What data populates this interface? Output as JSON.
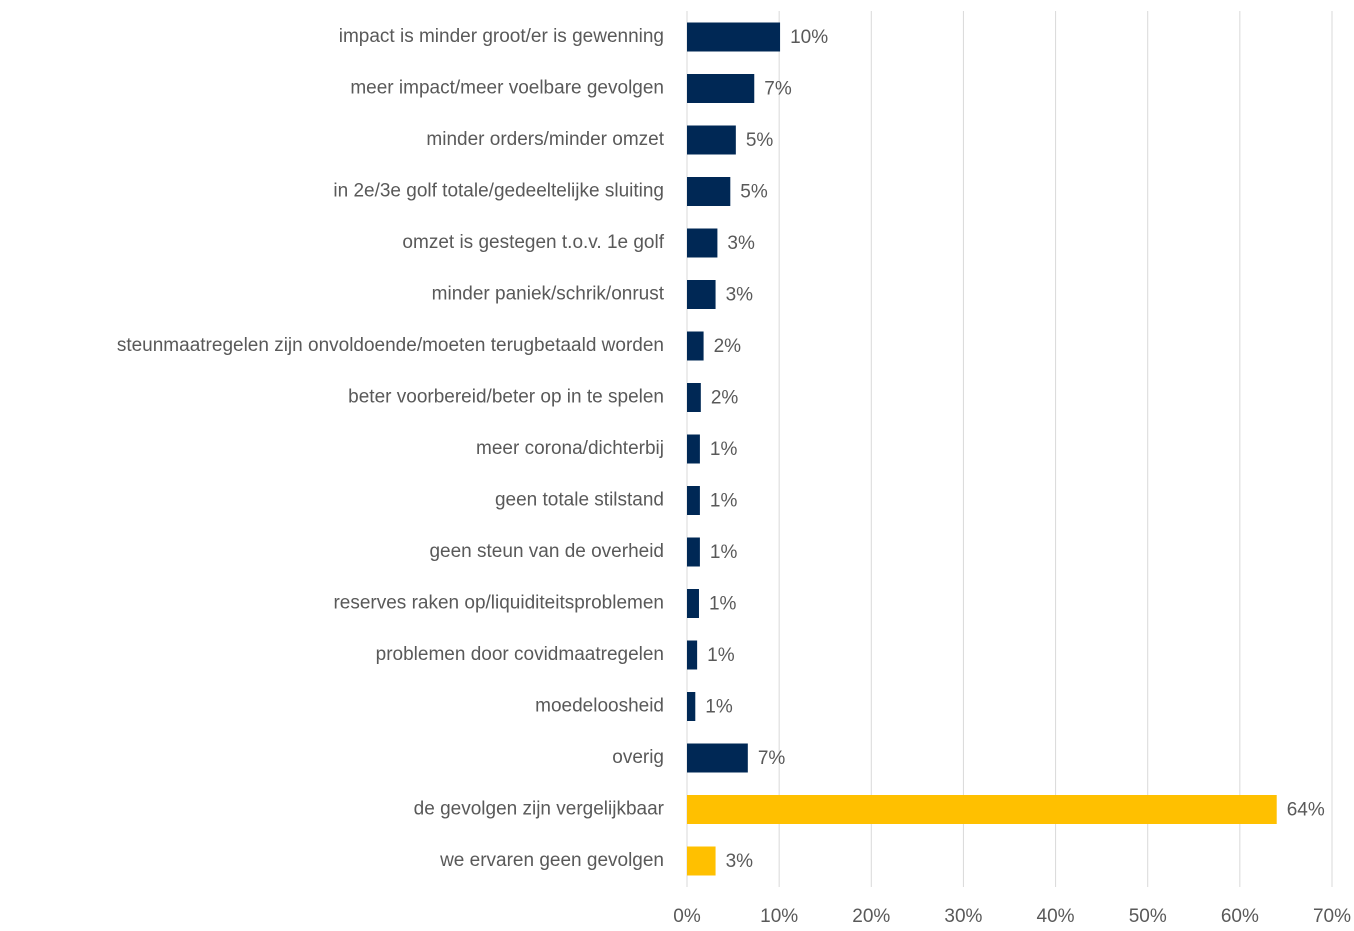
{
  "chart_data": {
    "type": "bar",
    "orientation": "horizontal",
    "categories": [
      "impact is minder groot/er is gewenning",
      "meer impact/meer voelbare gevolgen",
      "minder orders/minder omzet",
      "in 2e/3e golf totale/gedeeltelijke sluiting",
      "omzet is gestegen t.o.v. 1e golf",
      "minder paniek/schrik/onrust",
      "steunmaatregelen zijn onvoldoende/moeten terugbetaald worden",
      "beter voorbereid/beter op in te spelen",
      "meer corona/dichterbij",
      "geen totale stilstand",
      "geen steun van de overheid",
      "reserves raken op/liquiditeitsproblemen",
      "problemen door covidmaatregelen",
      "moedeloosheid",
      "overig",
      "de gevolgen zijn vergelijkbaar",
      "we ervaren geen gevolgen"
    ],
    "values": [
      10.1,
      7.3,
      5.3,
      4.7,
      3.3,
      3.1,
      1.8,
      1.5,
      1.4,
      1.4,
      1.4,
      1.3,
      1.1,
      0.9,
      6.6,
      64.0,
      3.1
    ],
    "value_labels": [
      "10%",
      "7%",
      "5%",
      "5%",
      "3%",
      "3%",
      "2%",
      "2%",
      "1%",
      "1%",
      "1%",
      "1%",
      "1%",
      "1%",
      "7%",
      "64%",
      "3%"
    ],
    "colors": [
      "#002855",
      "#002855",
      "#002855",
      "#002855",
      "#002855",
      "#002855",
      "#002855",
      "#002855",
      "#002855",
      "#002855",
      "#002855",
      "#002855",
      "#002855",
      "#002855",
      "#002855",
      "#ffc000",
      "#ffc000"
    ],
    "xlim": [
      0,
      70
    ],
    "xticks": [
      {
        "value": 0,
        "label": "0%"
      },
      {
        "value": 10,
        "label": "10%"
      },
      {
        "value": 20,
        "label": "20%"
      },
      {
        "value": 30,
        "label": "30%"
      },
      {
        "value": 40,
        "label": "40%"
      },
      {
        "value": 50,
        "label": "50%"
      },
      {
        "value": 60,
        "label": "60%"
      },
      {
        "value": 70,
        "label": "70%"
      }
    ],
    "grid": true
  }
}
